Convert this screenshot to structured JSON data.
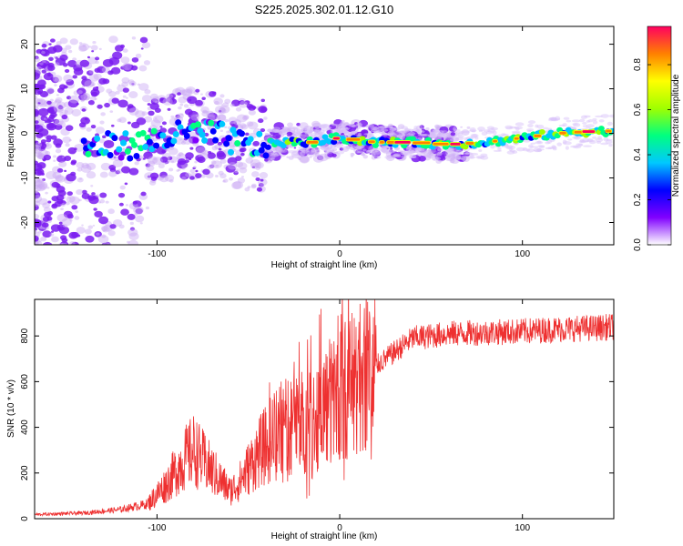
{
  "title": "S225.2025.302.01.12.G10",
  "chart_data": [
    {
      "type": "heatmap",
      "xlabel": "Height of straight line (km)",
      "ylabel": "Frequency (Hz)",
      "xlim": [
        -167,
        150
      ],
      "ylim": [
        -25,
        24
      ],
      "xticks": [
        -100,
        0,
        100
      ],
      "yticks": [
        -20,
        -10,
        0,
        10,
        20
      ],
      "colorbar": {
        "label": "Normalized spectral amplitude",
        "range": [
          0,
          0.97
        ],
        "ticks": [
          0.0,
          0.2,
          0.4,
          0.6,
          0.8
        ],
        "colors": [
          "#ffffff",
          "#8000ff",
          "#0000ff",
          "#00c8ff",
          "#00ff80",
          "#a0ff00",
          "#ffff00",
          "#ff8000",
          "#ff0060"
        ]
      },
      "ridge": {
        "x": [
          -130,
          -110,
          -90,
          -70,
          -50,
          -30,
          -15,
          0,
          20,
          40,
          60,
          80,
          100,
          120,
          140,
          150
        ],
        "freq": [
          -3,
          -2.5,
          -0.5,
          0,
          -3,
          -2,
          -2,
          -1,
          -2,
          -2,
          -2.5,
          -2,
          -1,
          0,
          0.5,
          0.5
        ]
      }
    },
    {
      "type": "line",
      "xlabel": "Height of straight line (km)",
      "ylabel": "SNR (10 * v/v)",
      "xlim": [
        -167,
        150
      ],
      "ylim": [
        0,
        960
      ],
      "xticks": [
        -100,
        0,
        100
      ],
      "yticks": [
        0,
        200,
        400,
        600,
        800
      ],
      "color": "#ee3030",
      "envelope": {
        "x": [
          -167,
          -140,
          -120,
          -105,
          -95,
          -85,
          -80,
          -70,
          -60,
          -55,
          -45,
          -35,
          -25,
          -15,
          -5,
          5,
          15,
          25,
          40,
          60,
          80,
          100,
          120,
          140,
          150
        ],
        "y": [
          18,
          25,
          40,
          65,
          150,
          260,
          300,
          210,
          120,
          160,
          280,
          370,
          420,
          430,
          520,
          580,
          640,
          700,
          790,
          810,
          815,
          820,
          830,
          835,
          840
        ]
      }
    }
  ]
}
